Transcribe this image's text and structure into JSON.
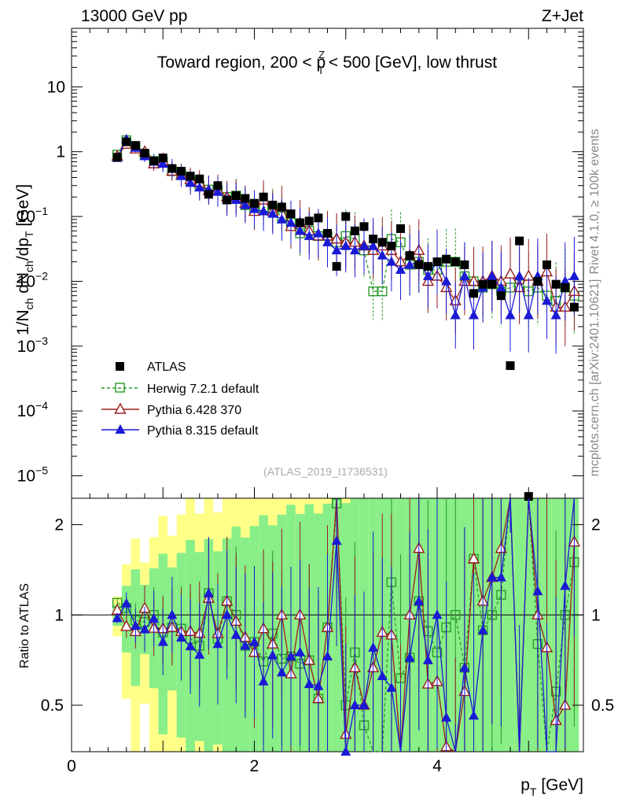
{
  "header": {
    "energy": "13000 GeV pp",
    "process": "Z+Jet"
  },
  "side_labels": {
    "rivet": "Rivet 4.1.0, ≥ 100k events",
    "mcplots": "mcplots.cern.ch [arXiv:2401.10621]"
  },
  "watermark": "(ATLAS_2019_I1736531)",
  "chart_data": {
    "type": "scatter",
    "title": "Toward region, 200 < pT^Z < 500 [GeV], low thrust",
    "title_parts": {
      "pre": "Toward region, 200 < p",
      "sup": "Z",
      "sub": "T",
      "post": " < 500 [GeV], low thrust"
    },
    "xlabel": "p_T [GeV]",
    "xlabel_parts": {
      "main": "p",
      "sub": "T",
      "post": " [GeV]"
    },
    "ylabel": "1/N_ch dN_ch/dp_T [GeV]",
    "ylabel_parts": {
      "a": "1/N",
      "a_sub": "ch",
      "b": " dN",
      "b_sub": "ch",
      "c": "/dp",
      "c_sub": "T",
      "d": " [GeV]"
    },
    "ratio_ylabel": "Ratio to ATLAS",
    "xlim": [
      0,
      5.6
    ],
    "ylim_log": [
      4.5e-06,
      80
    ],
    "ratio_ylim": [
      0.35,
      2.45
    ],
    "x_ticks": [
      "0",
      "2",
      "4"
    ],
    "y_ticks": [
      {
        "value": 10,
        "label": "10",
        "exp": ""
      },
      {
        "value": 1,
        "label": "1",
        "exp": ""
      },
      {
        "value": 0.1,
        "label": "10",
        "exp": "−1"
      },
      {
        "value": 0.01,
        "label": "10",
        "exp": "−2"
      },
      {
        "value": 0.001,
        "label": "10",
        "exp": "−3"
      },
      {
        "value": 0.0001,
        "label": "10",
        "exp": "−4"
      },
      {
        "value": 1e-05,
        "label": "10",
        "exp": "−5"
      }
    ],
    "ratio_ticks": [
      "2",
      "1",
      "0.5"
    ],
    "legend": [
      "ATLAS",
      "Herwig 7.2.1 default",
      "Pythia 6.428 370",
      "Pythia 8.315 default"
    ],
    "x": [
      0.5,
      0.6,
      0.7,
      0.8,
      0.9,
      1.0,
      1.1,
      1.2,
      1.3,
      1.4,
      1.5,
      1.6,
      1.7,
      1.8,
      1.9,
      2.0,
      2.1,
      2.2,
      2.3,
      2.4,
      2.5,
      2.6,
      2.7,
      2.8,
      2.9,
      3.0,
      3.1,
      3.2,
      3.3,
      3.4,
      3.5,
      3.6,
      3.7,
      3.8,
      3.9,
      4.0,
      4.1,
      4.2,
      4.3,
      4.4,
      4.5,
      4.6,
      4.7,
      4.8,
      4.9,
      5.0,
      5.1,
      5.2,
      5.3,
      5.4,
      5.5
    ],
    "series": [
      {
        "name": "ATLAS",
        "color": "#000000",
        "values": [
          0.82,
          1.42,
          1.25,
          0.95,
          0.72,
          0.8,
          0.55,
          0.5,
          0.42,
          0.38,
          0.22,
          0.3,
          0.18,
          0.21,
          0.19,
          0.16,
          0.2,
          0.15,
          0.14,
          0.11,
          0.08,
          0.085,
          0.095,
          0.055,
          0.017,
          0.1,
          0.06,
          0.07,
          0.045,
          0.04,
          0.035,
          0.065,
          0.025,
          0.018,
          0.017,
          0.02,
          0.022,
          0.02,
          0.018,
          0.0065,
          0.009,
          0.009,
          0.006,
          0.0005,
          0.042,
          4.8e-06,
          0.01,
          0.018,
          0.009,
          0.008,
          0.004
        ]
      },
      {
        "name": "Herwig 7.2.1 default",
        "color": "#2a9a2a",
        "values": [
          0.9,
          1.5,
          1.2,
          0.9,
          0.72,
          0.7,
          0.5,
          0.45,
          0.35,
          0.3,
          0.26,
          0.25,
          0.2,
          0.21,
          0.15,
          0.13,
          0.14,
          0.13,
          0.1,
          0.08,
          0.055,
          0.06,
          0.05,
          0.05,
          0.04,
          0.05,
          0.045,
          0.03,
          0.007,
          0.007,
          0.045,
          0.04,
          0.018,
          0.02,
          0.015,
          0.015,
          0.02,
          0.02,
          0.012,
          0.01,
          0.008,
          0.009,
          0.007,
          0.008,
          0.009,
          0.007,
          0.008,
          0.006,
          0.005,
          0.008,
          0.006
        ]
      },
      {
        "name": "Pythia 6.428 370",
        "color": "#9a1e1e",
        "values": [
          0.85,
          1.3,
          1.1,
          1.0,
          0.65,
          0.72,
          0.5,
          0.44,
          0.37,
          0.33,
          0.25,
          0.26,
          0.2,
          0.2,
          0.16,
          0.12,
          0.18,
          0.12,
          0.14,
          0.07,
          0.08,
          0.06,
          0.05,
          0.05,
          0.045,
          0.04,
          0.04,
          0.035,
          0.03,
          0.035,
          0.03,
          0.02,
          0.025,
          0.03,
          0.01,
          0.012,
          0.008,
          0.005,
          0.01,
          0.01,
          0.01,
          0.012,
          0.01,
          0.013,
          0.008,
          0.012,
          0.01,
          0.014,
          0.004,
          0.004,
          0.007
        ]
      },
      {
        "name": "Pythia 8.315 default",
        "color": "#1a1ad6",
        "values": [
          0.8,
          1.55,
          1.15,
          0.85,
          0.7,
          0.65,
          0.55,
          0.42,
          0.33,
          0.28,
          0.26,
          0.24,
          0.18,
          0.18,
          0.15,
          0.13,
          0.12,
          0.11,
          0.09,
          0.08,
          0.06,
          0.05,
          0.055,
          0.04,
          0.03,
          0.035,
          0.03,
          0.035,
          0.035,
          0.025,
          0.02,
          0.015,
          0.018,
          0.02,
          0.012,
          0.02,
          0.01,
          0.003,
          0.012,
          0.003,
          0.008,
          0.012,
          0.008,
          0.003,
          0.012,
          0.003,
          0.012,
          0.005,
          0.003,
          0.01,
          0.012
        ]
      }
    ]
  }
}
